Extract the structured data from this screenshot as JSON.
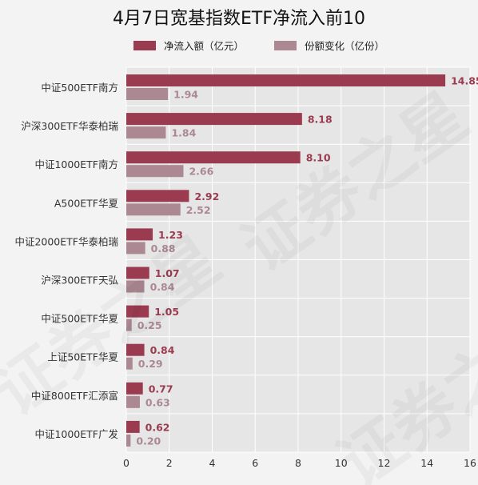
{
  "chart_data": {
    "type": "bar",
    "orientation": "horizontal",
    "title": "4月7日宽基指数ETF净流入前10",
    "categories": [
      "中证500ETF南方",
      "沪深300ETF华泰柏瑞",
      "中证1000ETF南方",
      "A500ETF华夏",
      "中证2000ETF华泰柏瑞",
      "沪深300ETF天弘",
      "中证500ETF华夏",
      "上证50ETF华夏",
      "中证800ETF汇添富",
      "中证1000ETF广发"
    ],
    "series": [
      {
        "name": "净流入额（亿元）",
        "color": "#9b3b4f",
        "values": [
          14.85,
          8.18,
          8.1,
          2.92,
          1.23,
          1.07,
          1.05,
          0.84,
          0.77,
          0.62
        ],
        "labels": [
          "14.85",
          "8.18",
          "8.10",
          "2.92",
          "1.23",
          "1.07",
          "1.05",
          "0.84",
          "0.77",
          "0.62"
        ]
      },
      {
        "name": "份额变化（亿份）",
        "color": "#ab8892",
        "values": [
          1.94,
          1.84,
          2.66,
          2.52,
          0.88,
          0.84,
          0.25,
          0.29,
          0.63,
          0.2
        ],
        "labels": [
          "1.94",
          "1.84",
          "2.66",
          "2.52",
          "0.88",
          "0.84",
          "0.25",
          "0.29",
          "0.63",
          "0.20"
        ]
      }
    ],
    "xlim": [
      0,
      16
    ],
    "xticks": [
      "0",
      "2",
      "4",
      "6",
      "8",
      "10",
      "12",
      "14",
      "16"
    ],
    "grid": true,
    "legend_position": "top",
    "watermark": "证券之星",
    "background": "#e6e6e6"
  }
}
